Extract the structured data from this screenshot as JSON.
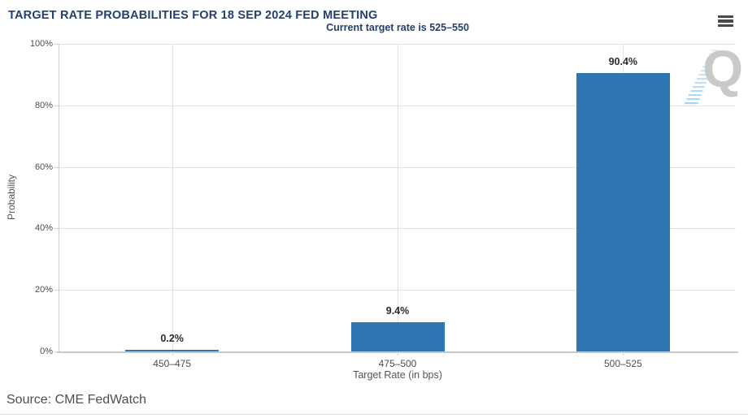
{
  "chart_data": {
    "type": "bar",
    "title": "TARGET RATE PROBABILITIES FOR 18 SEP 2024 FED MEETING",
    "subtitle": "Current target rate is 525–550",
    "categories": [
      "450–475",
      "475–500",
      "500–525"
    ],
    "values": [
      0.2,
      9.4,
      90.4
    ],
    "value_labels": [
      "0.2%",
      "9.4%",
      "90.4%"
    ],
    "xlabel": "Target Rate (in bps)",
    "ylabel": "Probability",
    "ylim": [
      0,
      100
    ],
    "yticks": [
      0,
      20,
      40,
      60,
      80,
      100
    ],
    "ytick_suffix": "%",
    "grid": true,
    "legend_position": "none",
    "bar_color": "#2e76b1",
    "title_color": "#24406e"
  },
  "menu": {
    "icon": "hamburger"
  },
  "watermark": {
    "letter": "Q"
  },
  "footer": {
    "source": "Source: CME FedWatch"
  }
}
